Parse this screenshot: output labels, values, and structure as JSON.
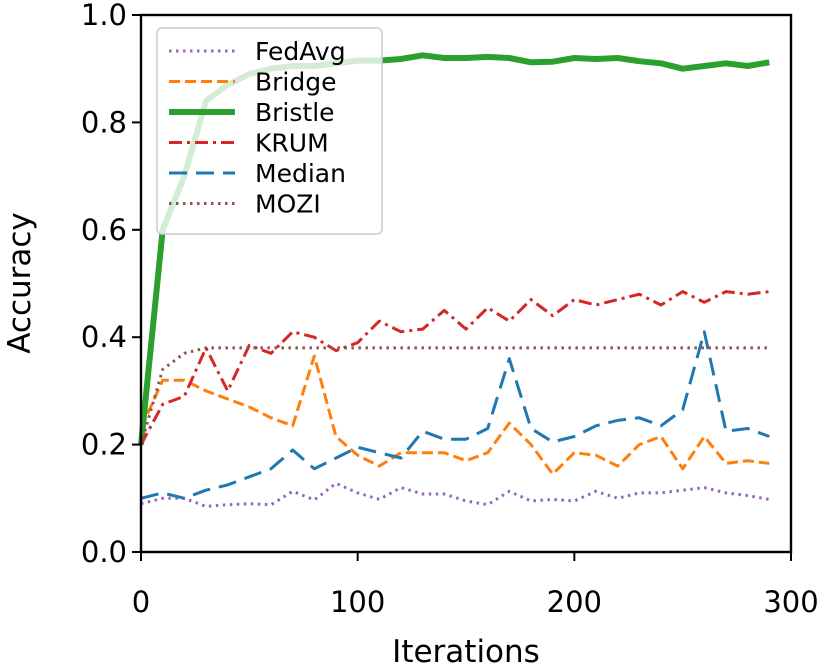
{
  "chart_data": {
    "type": "line",
    "title": "",
    "xlabel": "Iterations",
    "ylabel": "Accuracy",
    "xlim": [
      0,
      300
    ],
    "ylim": [
      0.0,
      1.0
    ],
    "xticks": [
      0,
      100,
      200,
      300
    ],
    "xtick_labels": [
      "0",
      "100",
      "200",
      "300"
    ],
    "yticks": [
      0.0,
      0.2,
      0.4,
      0.6,
      0.8,
      1.0
    ],
    "ytick_labels": [
      "0.0",
      "0.2",
      "0.4",
      "0.6",
      "0.8",
      "1.0"
    ],
    "grid": false,
    "legend_position": "top-left",
    "x": [
      0,
      10,
      20,
      30,
      40,
      50,
      60,
      70,
      80,
      90,
      100,
      110,
      120,
      130,
      140,
      150,
      160,
      170,
      180,
      190,
      200,
      210,
      220,
      230,
      240,
      250,
      260,
      270,
      280,
      290
    ],
    "series": [
      {
        "name": "FedAvg",
        "color": "#9467bd",
        "dash": "dotted",
        "values": [
          0.09,
          0.1,
          0.1,
          0.085,
          0.088,
          0.09,
          0.088,
          0.113,
          0.097,
          0.128,
          0.11,
          0.098,
          0.12,
          0.108,
          0.108,
          0.095,
          0.088,
          0.113,
          0.095,
          0.098,
          0.095,
          0.113,
          0.1,
          0.11,
          0.11,
          0.115,
          0.12,
          0.11,
          0.105,
          0.098
        ]
      },
      {
        "name": "Bridge",
        "color": "#ff7f0e",
        "dash": "dashed",
        "values": [
          0.23,
          0.32,
          0.32,
          0.3,
          0.285,
          0.27,
          0.25,
          0.235,
          0.365,
          0.215,
          0.18,
          0.16,
          0.185,
          0.185,
          0.185,
          0.17,
          0.185,
          0.24,
          0.2,
          0.145,
          0.185,
          0.18,
          0.16,
          0.2,
          0.215,
          0.155,
          0.215,
          0.165,
          0.17,
          0.165
        ]
      },
      {
        "name": "Bristle",
        "color": "#2ca02c",
        "dash": "solid",
        "values": [
          0.2,
          0.6,
          0.7,
          0.84,
          0.87,
          0.89,
          0.9,
          0.905,
          0.905,
          0.91,
          0.915,
          0.915,
          0.918,
          0.925,
          0.92,
          0.92,
          0.922,
          0.92,
          0.912,
          0.913,
          0.92,
          0.918,
          0.92,
          0.914,
          0.91,
          0.9,
          0.905,
          0.91,
          0.905,
          0.912
        ]
      },
      {
        "name": "KRUM",
        "color": "#d62728",
        "dash": "dashdot",
        "values": [
          0.2,
          0.275,
          0.29,
          0.38,
          0.3,
          0.385,
          0.37,
          0.41,
          0.4,
          0.375,
          0.39,
          0.43,
          0.41,
          0.415,
          0.45,
          0.415,
          0.455,
          0.43,
          0.47,
          0.44,
          0.47,
          0.46,
          0.47,
          0.48,
          0.46,
          0.485,
          0.465,
          0.485,
          0.48,
          0.485
        ]
      },
      {
        "name": "Median",
        "color": "#1f77b4",
        "dash": "longdash",
        "values": [
          0.1,
          0.11,
          0.1,
          0.115,
          0.125,
          0.14,
          0.155,
          0.19,
          0.155,
          0.175,
          0.195,
          0.185,
          0.175,
          0.225,
          0.21,
          0.21,
          0.23,
          0.36,
          0.23,
          0.205,
          0.215,
          0.235,
          0.245,
          0.25,
          0.235,
          0.265,
          0.41,
          0.225,
          0.23,
          0.215
        ]
      },
      {
        "name": "MOZI",
        "color": "#8c564b",
        "dash": "dotted",
        "values": [
          0.2,
          0.34,
          0.37,
          0.38,
          0.38,
          0.38,
          0.38,
          0.38,
          0.38,
          0.38,
          0.38,
          0.38,
          0.38,
          0.38,
          0.38,
          0.38,
          0.38,
          0.38,
          0.38,
          0.38,
          0.38,
          0.38,
          0.38,
          0.38,
          0.38,
          0.38,
          0.38,
          0.38,
          0.38,
          0.38
        ]
      }
    ]
  }
}
